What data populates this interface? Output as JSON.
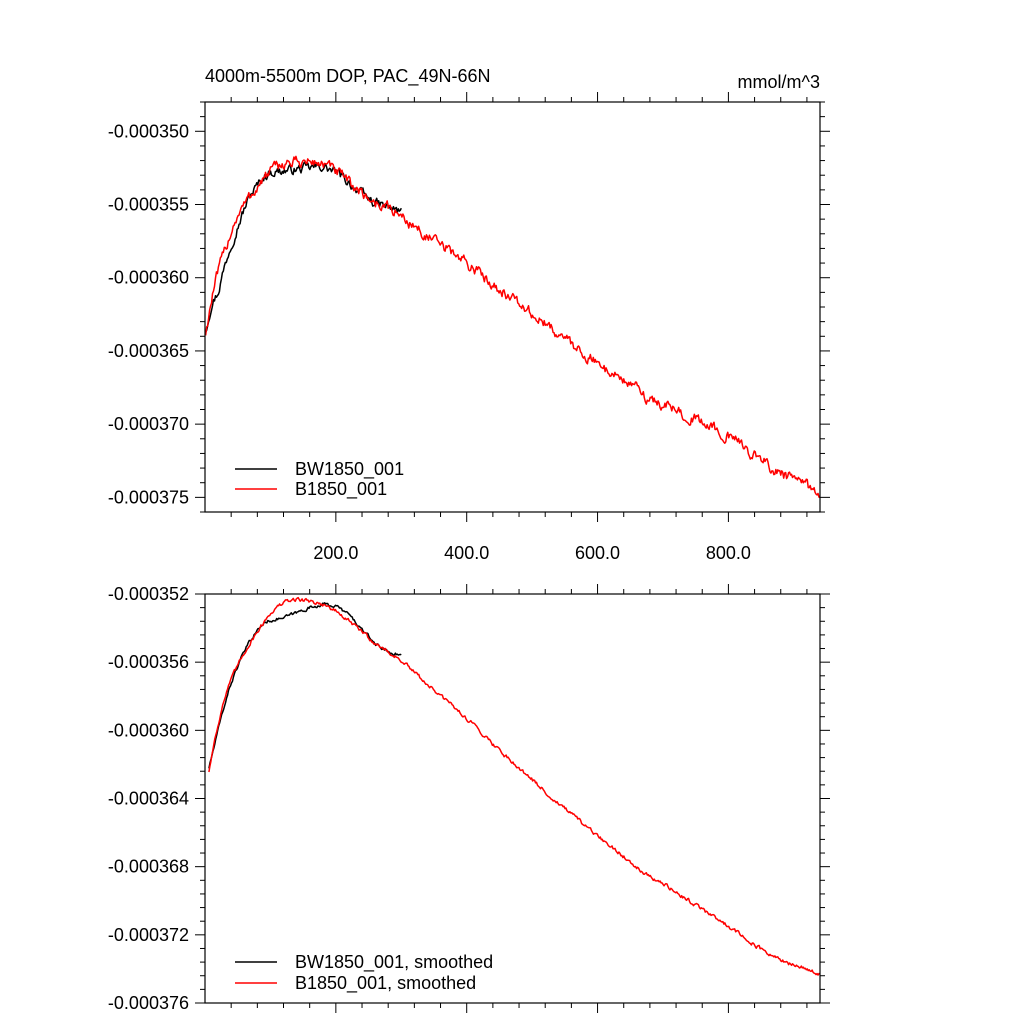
{
  "chart_data": [
    {
      "type": "line",
      "title": "4000m-5500m DOP, PAC_49N-66N",
      "units": "mmol/m^3",
      "xlabel": "",
      "ylabel": "",
      "xlim": [
        0,
        940
      ],
      "ylim": [
        -0.000376,
        -0.000348
      ],
      "x_ticks": [
        200,
        400,
        600,
        800
      ],
      "x_tick_labels": [
        "200.0",
        "400.0",
        "600.0",
        "800.0"
      ],
      "y_ticks": [
        -0.00035,
        -0.000355,
        -0.00036,
        -0.000365,
        -0.00037,
        -0.000375
      ],
      "y_tick_labels": [
        "-0.000350",
        "-0.000355",
        "-0.000360",
        "-0.000365",
        "-0.000370",
        "-0.000375"
      ],
      "legend_position": "bottom-left",
      "series": [
        {
          "name": "BW1850_001",
          "color": "#000000",
          "noise": 6e-07,
          "x": [
            1,
            10,
            20,
            30,
            40,
            50,
            60,
            70,
            80,
            90,
            100,
            120,
            140,
            160,
            180,
            200,
            220,
            240,
            260,
            280,
            300
          ],
          "values": [
            -0.0003636,
            -0.0003618,
            -0.000361,
            -0.0003592,
            -0.0003577,
            -0.0003565,
            -0.0003553,
            -0.0003543,
            -0.0003537,
            -0.0003531,
            -0.0003528,
            -0.0003527,
            -0.0003526,
            -0.0003525,
            -0.0003524,
            -0.0003528,
            -0.0003535,
            -0.0003543,
            -0.0003549,
            -0.0003552,
            -0.0003555
          ]
        },
        {
          "name": "B1850_001",
          "color": "#ff0000",
          "noise": 7e-07,
          "x": [
            1,
            10,
            20,
            30,
            40,
            50,
            60,
            80,
            100,
            120,
            140,
            160,
            180,
            200,
            220,
            240,
            260,
            280,
            300,
            320,
            340,
            360,
            380,
            400,
            420,
            440,
            460,
            480,
            500,
            520,
            540,
            560,
            580,
            600,
            620,
            640,
            660,
            680,
            700,
            720,
            740,
            760,
            780,
            800,
            820,
            840,
            860,
            880,
            900,
            920,
            940
          ],
          "values": [
            -0.0003638,
            -0.0003615,
            -0.0003596,
            -0.0003582,
            -0.0003568,
            -0.0003557,
            -0.000355,
            -0.0003538,
            -0.0003527,
            -0.0003522,
            -0.0003521,
            -0.0003521,
            -0.0003522,
            -0.0003527,
            -0.0003535,
            -0.0003542,
            -0.0003549,
            -0.0003552,
            -0.0003558,
            -0.0003565,
            -0.0003572,
            -0.0003578,
            -0.0003583,
            -0.000359,
            -0.0003597,
            -0.0003604,
            -0.0003611,
            -0.0003618,
            -0.0003625,
            -0.0003632,
            -0.0003638,
            -0.0003645,
            -0.0003652,
            -0.0003659,
            -0.0003664,
            -0.000367,
            -0.0003676,
            -0.0003683,
            -0.0003687,
            -0.000369,
            -0.0003695,
            -0.0003699,
            -0.0003703,
            -0.0003709,
            -0.0003714,
            -0.0003721,
            -0.0003728,
            -0.0003734,
            -0.0003738,
            -0.0003742,
            -0.0003748
          ]
        }
      ]
    },
    {
      "type": "line",
      "title": "",
      "xlabel": "",
      "ylabel": "",
      "xlim": [
        0,
        940
      ],
      "ylim": [
        -0.000376,
        -0.000352
      ],
      "x_ticks": [
        200,
        400,
        600,
        800
      ],
      "x_tick_labels": [],
      "y_ticks": [
        -0.000352,
        -0.000356,
        -0.00036,
        -0.000364,
        -0.000368,
        -0.000372,
        -0.000376
      ],
      "y_tick_labels": [
        "-0.000352",
        "-0.000356",
        "-0.000360",
        "-0.000364",
        "-0.000368",
        "-0.000372",
        "-0.000376"
      ],
      "legend_position": "bottom-left",
      "series": [
        {
          "name": "BW1850_001, smoothed",
          "color": "#000000",
          "noise": 1.8e-07,
          "x": [
            6,
            15,
            25,
            35,
            45,
            55,
            65,
            75,
            85,
            95,
            105,
            120,
            140,
            160,
            180,
            200,
            220,
            240,
            260,
            280,
            300
          ],
          "values": [
            -0.0003622,
            -0.0003608,
            -0.0003592,
            -0.0003578,
            -0.0003567,
            -0.0003558,
            -0.000355,
            -0.0003544,
            -0.0003539,
            -0.0003536,
            -0.0003535,
            -0.0003534,
            -0.0003531,
            -0.0003528,
            -0.0003526,
            -0.0003527,
            -0.0003532,
            -0.0003541,
            -0.0003549,
            -0.0003554,
            -0.0003556
          ]
        },
        {
          "name": "B1850_001, smoothed",
          "color": "#ff0000",
          "noise": 2.2e-07,
          "x": [
            6,
            15,
            25,
            35,
            45,
            55,
            65,
            80,
            100,
            120,
            140,
            160,
            180,
            200,
            220,
            240,
            260,
            280,
            300,
            320,
            340,
            360,
            380,
            400,
            420,
            440,
            460,
            480,
            500,
            520,
            540,
            560,
            580,
            600,
            620,
            640,
            660,
            680,
            700,
            720,
            740,
            760,
            780,
            800,
            820,
            840,
            860,
            880,
            900,
            920,
            940
          ],
          "values": [
            -0.0003624,
            -0.0003605,
            -0.0003588,
            -0.0003575,
            -0.0003566,
            -0.0003558,
            -0.0003551,
            -0.0003542,
            -0.0003531,
            -0.0003525,
            -0.0003523,
            -0.0003524,
            -0.0003526,
            -0.000353,
            -0.0003536,
            -0.0003542,
            -0.0003549,
            -0.0003554,
            -0.0003559,
            -0.0003566,
            -0.0003573,
            -0.000358,
            -0.0003586,
            -0.0003593,
            -0.00036,
            -0.0003608,
            -0.0003615,
            -0.0003622,
            -0.0003629,
            -0.0003636,
            -0.0003643,
            -0.0003649,
            -0.0003656,
            -0.0003662,
            -0.0003668,
            -0.0003674,
            -0.000368,
            -0.0003686,
            -0.000369,
            -0.0003695,
            -0.00037,
            -0.0003705,
            -0.000371,
            -0.0003715,
            -0.000372,
            -0.0003726,
            -0.0003731,
            -0.0003735,
            -0.0003738,
            -0.000374,
            -0.0003743
          ]
        }
      ]
    }
  ]
}
